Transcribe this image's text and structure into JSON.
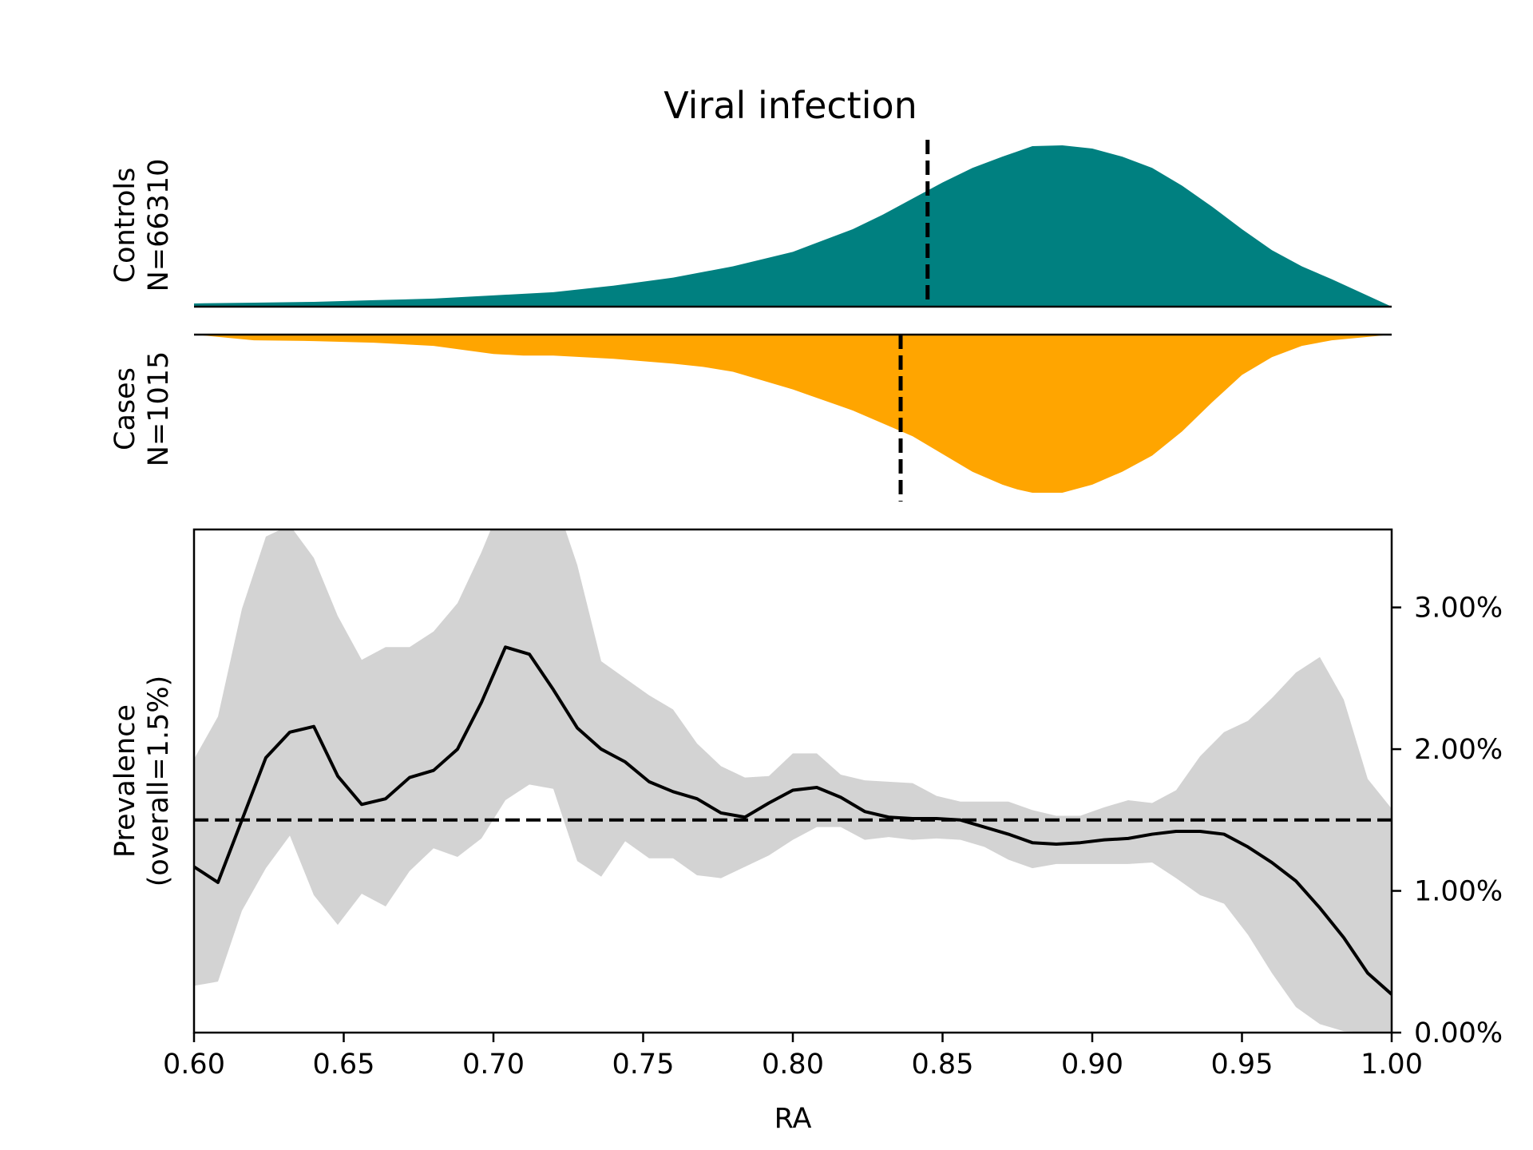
{
  "chart_data": {
    "type": "area",
    "title": "Viral infection",
    "colors": {
      "controls": "#008080",
      "cases": "#FFA500",
      "ci_band": "#D3D3D3",
      "line": "#000000"
    },
    "controls": {
      "label_line1": "Controls",
      "label_line2": "N=66310",
      "mean_ra": 0.845,
      "density": {
        "x": [
          0.6,
          0.62,
          0.64,
          0.66,
          0.68,
          0.7,
          0.72,
          0.74,
          0.76,
          0.78,
          0.8,
          0.82,
          0.83,
          0.84,
          0.85,
          0.86,
          0.87,
          0.88,
          0.89,
          0.9,
          0.91,
          0.92,
          0.93,
          0.94,
          0.95,
          0.96,
          0.97,
          0.98,
          1.0
        ],
        "y": [
          0.02,
          0.025,
          0.03,
          0.04,
          0.05,
          0.07,
          0.09,
          0.13,
          0.18,
          0.25,
          0.34,
          0.48,
          0.57,
          0.67,
          0.77,
          0.86,
          0.93,
          0.995,
          1.0,
          0.98,
          0.93,
          0.86,
          0.75,
          0.62,
          0.48,
          0.35,
          0.25,
          0.17,
          0.0
        ]
      }
    },
    "cases": {
      "label_line1": "Cases",
      "label_line2": "N=1015",
      "mean_ra": 0.836,
      "density": {
        "x": [
          0.6,
          0.62,
          0.64,
          0.66,
          0.68,
          0.7,
          0.71,
          0.72,
          0.74,
          0.76,
          0.77,
          0.78,
          0.8,
          0.82,
          0.84,
          0.85,
          0.86,
          0.87,
          0.875,
          0.88,
          0.89,
          0.9,
          0.91,
          0.92,
          0.93,
          0.94,
          0.95,
          0.96,
          0.97,
          0.98,
          1.0
        ],
        "y": [
          0.0,
          0.035,
          0.04,
          0.05,
          0.07,
          0.12,
          0.13,
          0.13,
          0.15,
          0.18,
          0.2,
          0.23,
          0.34,
          0.47,
          0.63,
          0.74,
          0.85,
          0.93,
          0.96,
          0.98,
          0.98,
          0.93,
          0.85,
          0.75,
          0.6,
          0.42,
          0.25,
          0.14,
          0.07,
          0.035,
          0.0
        ]
      }
    },
    "prevalence": {
      "ylabel_line1": "Prevalence",
      "ylabel_line2": "(overall=1.5%)",
      "xlabel": "RA",
      "overall": 1.5,
      "xlim": [
        0.6,
        1.0
      ],
      "ylim": [
        0.0,
        3.55
      ],
      "x_ticks": [
        "0.60",
        "0.65",
        "0.70",
        "0.75",
        "0.80",
        "0.85",
        "0.90",
        "0.95",
        "1.00"
      ],
      "y_ticks": [
        "0.00%",
        "1.00%",
        "2.00%",
        "3.00%"
      ],
      "x": [
        0.6,
        0.608,
        0.616,
        0.624,
        0.632,
        0.64,
        0.648,
        0.656,
        0.664,
        0.672,
        0.68,
        0.688,
        0.696,
        0.704,
        0.712,
        0.72,
        0.728,
        0.736,
        0.744,
        0.752,
        0.76,
        0.768,
        0.776,
        0.784,
        0.792,
        0.8,
        0.808,
        0.816,
        0.824,
        0.832,
        0.84,
        0.848,
        0.856,
        0.864,
        0.872,
        0.88,
        0.888,
        0.896,
        0.904,
        0.912,
        0.92,
        0.928,
        0.936,
        0.944,
        0.952,
        0.96,
        0.968,
        0.976,
        0.984,
        0.992,
        1.0
      ],
      "y": [
        1.17,
        1.06,
        1.5,
        1.94,
        2.12,
        2.16,
        1.81,
        1.61,
        1.65,
        1.8,
        1.85,
        2.0,
        2.33,
        2.72,
        2.67,
        2.42,
        2.15,
        2.0,
        1.91,
        1.77,
        1.7,
        1.65,
        1.55,
        1.52,
        1.62,
        1.71,
        1.73,
        1.66,
        1.56,
        1.52,
        1.51,
        1.51,
        1.5,
        1.45,
        1.4,
        1.34,
        1.33,
        1.34,
        1.36,
        1.37,
        1.4,
        1.42,
        1.42,
        1.4,
        1.31,
        1.2,
        1.07,
        0.88,
        0.67,
        0.42,
        0.27
      ],
      "ci_upper": [
        1.93,
        2.23,
        2.99,
        3.5,
        3.58,
        3.35,
        2.94,
        2.63,
        2.72,
        2.72,
        2.83,
        3.03,
        3.39,
        3.8,
        3.8,
        3.8,
        3.3,
        2.62,
        2.5,
        2.38,
        2.28,
        2.04,
        1.88,
        1.8,
        1.81,
        1.97,
        1.97,
        1.82,
        1.78,
        1.77,
        1.76,
        1.67,
        1.63,
        1.63,
        1.63,
        1.57,
        1.53,
        1.53,
        1.59,
        1.64,
        1.62,
        1.71,
        1.95,
        2.12,
        2.2,
        2.36,
        2.54,
        2.65,
        2.35,
        1.79,
        1.58
      ],
      "ci_lower": [
        0.33,
        0.36,
        0.86,
        1.16,
        1.39,
        0.97,
        0.76,
        0.98,
        0.89,
        1.14,
        1.3,
        1.24,
        1.37,
        1.64,
        1.75,
        1.72,
        1.21,
        1.1,
        1.35,
        1.23,
        1.23,
        1.11,
        1.09,
        1.17,
        1.25,
        1.36,
        1.45,
        1.45,
        1.36,
        1.38,
        1.36,
        1.37,
        1.36,
        1.31,
        1.22,
        1.16,
        1.19,
        1.19,
        1.19,
        1.19,
        1.2,
        1.09,
        0.97,
        0.91,
        0.69,
        0.42,
        0.18,
        0.06,
        0.01,
        0.0,
        0.0
      ]
    }
  }
}
